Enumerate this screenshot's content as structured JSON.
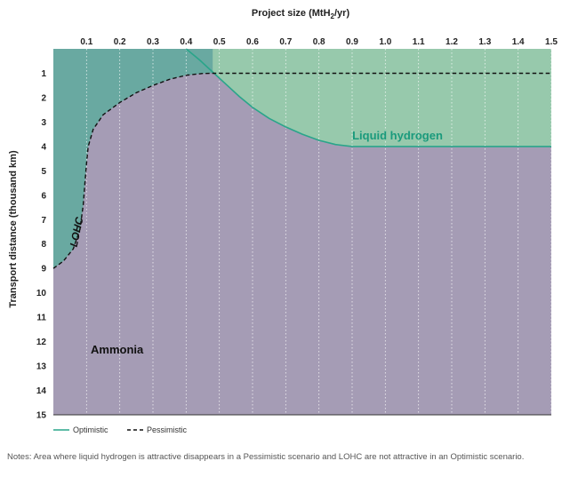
{
  "chart_data": {
    "type": "area",
    "title": "",
    "xlabel_prefix": "Project size (MtH",
    "xlabel_sub": "2",
    "xlabel_suffix": "/yr)",
    "ylabel": "Transport distance (thousand km)",
    "xlim": [
      0,
      1.5
    ],
    "ylim": [
      0,
      15
    ],
    "y_inverted": true,
    "x_ticks": [
      "0.1",
      "0.2",
      "0.3",
      "0.4",
      "0.5",
      "0.6",
      "0.7",
      "0.8",
      "0.9",
      "1.0",
      "1.1",
      "1.2",
      "1.3",
      "1.4",
      "1.5"
    ],
    "y_ticks": [
      "1",
      "2",
      "3",
      "4",
      "5",
      "6",
      "7",
      "8",
      "9",
      "10",
      "11",
      "12",
      "13",
      "14",
      "15"
    ],
    "grid": "vertical dotted",
    "regions": [
      {
        "label": "Ammonia",
        "color": "#a59cb5"
      },
      {
        "label": "Liquid hydrogen",
        "color": "#97c9ac"
      },
      {
        "label": "LOHC",
        "color": "#69a9a1"
      }
    ],
    "series": [
      {
        "name": "Optimistic",
        "style": "solid",
        "color": "#2aa58a",
        "x": [
          0.4,
          0.44,
          0.48,
          0.52,
          0.56,
          0.6,
          0.65,
          0.7,
          0.75,
          0.8,
          0.85,
          0.9,
          1.0,
          1.2,
          1.5
        ],
        "y": [
          0.0,
          0.45,
          0.95,
          1.45,
          1.95,
          2.4,
          2.85,
          3.2,
          3.5,
          3.75,
          3.92,
          4.0,
          4.0,
          4.0,
          4.0
        ]
      },
      {
        "name": "Pessimistic",
        "style": "dashed",
        "color": "#111111",
        "x": [
          0.0,
          0.03,
          0.06,
          0.08,
          0.09,
          0.095,
          0.1,
          0.105,
          0.12,
          0.15,
          0.2,
          0.25,
          0.3,
          0.35,
          0.4,
          0.45,
          0.48,
          0.6,
          1.0,
          1.5
        ],
        "y": [
          9.0,
          8.7,
          8.2,
          7.4,
          6.4,
          5.5,
          4.7,
          4.0,
          3.3,
          2.7,
          2.2,
          1.8,
          1.5,
          1.25,
          1.08,
          1.01,
          1.0,
          1.0,
          1.0,
          1.0
        ]
      }
    ]
  },
  "legend": {
    "optimistic_label": "Optimistic",
    "pessimistic_label": "Pessimistic"
  },
  "notes": "Notes: Area where liquid hydrogen is attractive disappears in a Pessimistic scenario and LOHC are not attractive in an Optimistic scenario."
}
